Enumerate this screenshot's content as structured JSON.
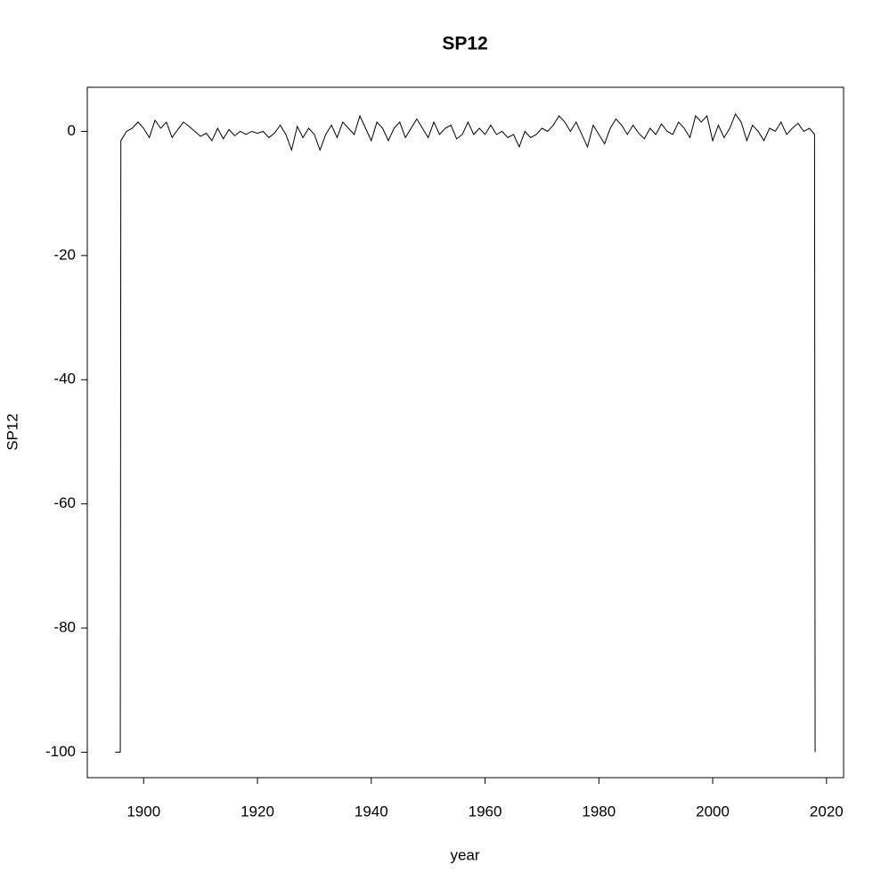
{
  "chart_data": {
    "type": "line",
    "title": "SP12",
    "x_label": "year",
    "y_label": "SP12",
    "xlim": [
      1890.1,
      2023.0
    ],
    "ylim": [
      -104.1,
      7.1
    ],
    "xticks": [
      1900,
      1920,
      1940,
      1960,
      1980,
      2000,
      2020
    ],
    "yticks": [
      -100,
      -80,
      -60,
      -40,
      -20,
      0
    ],
    "grid": false,
    "series": [
      {
        "name": "SP12",
        "color": "#000000",
        "x": [
          1895,
          1895.9,
          1896,
          1897,
          1898,
          1899,
          1900,
          1901,
          1902,
          1903,
          1904,
          1905,
          1906,
          1907,
          1908,
          1909,
          1910,
          1911,
          1912,
          1913,
          1914,
          1915,
          1916,
          1917,
          1918,
          1919,
          1920,
          1921,
          1922,
          1923,
          1924,
          1925,
          1926,
          1927,
          1928,
          1929,
          1930,
          1931,
          1932,
          1933,
          1934,
          1935,
          1936,
          1937,
          1938,
          1939,
          1940,
          1941,
          1942,
          1943,
          1944,
          1945,
          1946,
          1947,
          1948,
          1949,
          1950,
          1951,
          1952,
          1953,
          1954,
          1955,
          1956,
          1957,
          1958,
          1959,
          1960,
          1961,
          1962,
          1963,
          1964,
          1965,
          1966,
          1967,
          1968,
          1969,
          1970,
          1971,
          1972,
          1973,
          1974,
          1975,
          1976,
          1977,
          1978,
          1979,
          1980,
          1981,
          1982,
          1983,
          1984,
          1985,
          1986,
          1987,
          1988,
          1989,
          1990,
          1991,
          1992,
          1993,
          1994,
          1995,
          1996,
          1997,
          1998,
          1999,
          2000,
          2001,
          2002,
          2003,
          2004,
          2005,
          2006,
          2007,
          2008,
          2009,
          2010,
          2011,
          2012,
          2013,
          2014,
          2015,
          2016,
          2017,
          2017.9,
          2018
        ],
        "values": [
          -100,
          -100,
          -1.5,
          0,
          0.5,
          1.5,
          0.5,
          -1,
          1.8,
          0.5,
          1.5,
          -1,
          0.3,
          1.5,
          0.8,
          0,
          -0.8,
          -0.3,
          -1.5,
          0.5,
          -1.2,
          0.3,
          -0.7,
          0,
          -0.5,
          0,
          -0.3,
          0,
          -1,
          -0.3,
          1,
          -0.5,
          -3,
          0.8,
          -1,
          0.5,
          -0.5,
          -3,
          -0.5,
          1,
          -1,
          1.5,
          0.5,
          -0.5,
          2.5,
          0.5,
          -1.5,
          1.5,
          0.5,
          -1.5,
          0.5,
          1.5,
          -1,
          0.5,
          2,
          0.5,
          -1,
          1.5,
          -0.5,
          0.5,
          1,
          -1.2,
          -0.5,
          1.5,
          -0.5,
          0.5,
          -0.5,
          1,
          -0.5,
          0,
          -1,
          -0.5,
          -2.5,
          0,
          -1,
          -0.5,
          0.5,
          0,
          1,
          2.5,
          1.5,
          0,
          1.5,
          -0.5,
          -2.5,
          1,
          -0.5,
          -2,
          0.5,
          2,
          1,
          -0.5,
          1,
          -0.3,
          -1.2,
          0.5,
          -0.5,
          1.2,
          0,
          -0.5,
          1.5,
          0.5,
          -1,
          2.5,
          1.5,
          2.5,
          -1.5,
          1,
          -1,
          0.5,
          2.8,
          1.5,
          -1.5,
          1,
          0,
          -1.5,
          0.5,
          0,
          1.5,
          -0.5,
          0.5,
          1.3,
          0,
          0.5,
          -0.5,
          -100
        ]
      }
    ]
  }
}
